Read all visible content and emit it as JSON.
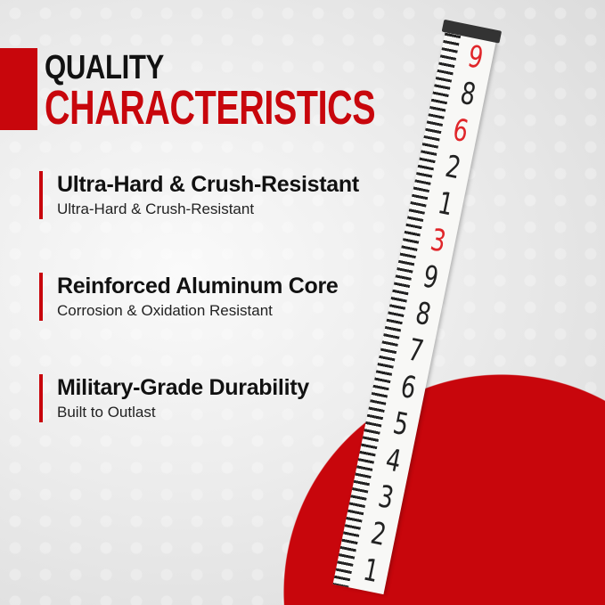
{
  "heading": {
    "line1": "QUALITY",
    "line2": "CHARACTERISTICS"
  },
  "features": [
    {
      "title": "Ultra-Hard & Crush-Resistant",
      "subtitle": "Ultra-Hard & Crush-Resistant"
    },
    {
      "title": "Reinforced Aluminum Core",
      "subtitle": "Corrosion & Oxidation Resistant"
    },
    {
      "title": "Military-Grade Durability",
      "subtitle": "Built to Outlast"
    }
  ],
  "rod_numbers": [
    {
      "text": "9",
      "red": true
    },
    {
      "text": "8",
      "red": false
    },
    {
      "text": "6",
      "red": true
    },
    {
      "text": "2",
      "red": false
    },
    {
      "text": "1",
      "red": false
    },
    {
      "text": "3",
      "red": true
    },
    {
      "text": "9",
      "red": false
    },
    {
      "text": "8",
      "red": false
    },
    {
      "text": "7",
      "red": false
    },
    {
      "text": "6",
      "red": false
    },
    {
      "text": "5",
      "red": false
    },
    {
      "text": "4",
      "red": false
    },
    {
      "text": "3",
      "red": false
    },
    {
      "text": "2",
      "red": false
    },
    {
      "text": "1",
      "red": false
    }
  ],
  "colors": {
    "accent": "#c8060c",
    "text": "#111111"
  }
}
